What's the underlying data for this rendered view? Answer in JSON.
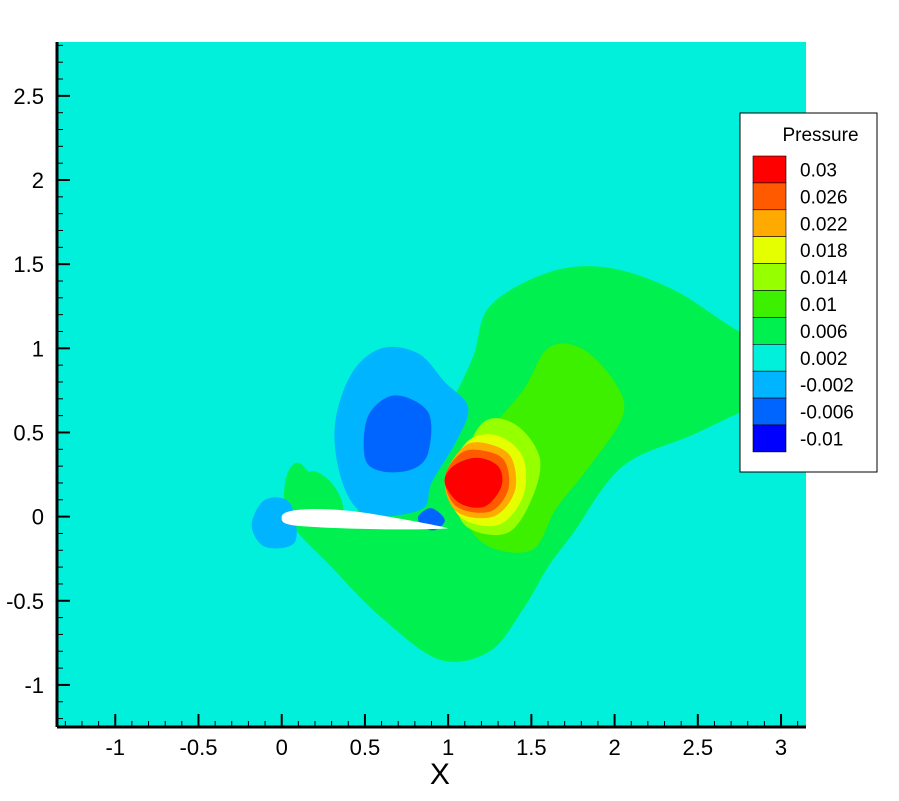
{
  "chart_data": {
    "type": "heatmap",
    "subtype": "filled-contour",
    "title": "",
    "xlabel": "X",
    "ylabel": "",
    "xlim": [
      -1.35,
      3.15
    ],
    "ylim": [
      -1.25,
      2.82
    ],
    "x_ticks": [
      -1,
      -0.5,
      0,
      0.5,
      1,
      1.5,
      2,
      2.5,
      3
    ],
    "x_tick_labels": [
      "-1",
      "-0.5",
      "0",
      "0.5",
      "1",
      "1.5",
      "2",
      "2.5",
      "3"
    ],
    "y_ticks": [
      -1,
      -0.5,
      0,
      0.5,
      1,
      1.5,
      2,
      2.5
    ],
    "y_tick_labels": [
      "-1",
      "-0.5",
      "0",
      "0.5",
      "1",
      "1.5",
      "2",
      "2.5"
    ],
    "grid": false,
    "legend": {
      "title": "Pressure",
      "placement": "right",
      "levels": [
        {
          "label": "0.03",
          "value": 0.03,
          "color": "#ff0000"
        },
        {
          "label": "0.026",
          "value": 0.026,
          "color": "#ff5a00"
        },
        {
          "label": "0.022",
          "value": 0.022,
          "color": "#ffaa00"
        },
        {
          "label": "0.018",
          "value": 0.018,
          "color": "#e6ff00"
        },
        {
          "label": "0.014",
          "value": 0.014,
          "color": "#96ff00"
        },
        {
          "label": "0.01",
          "value": 0.01,
          "color": "#3cf000"
        },
        {
          "label": "0.006",
          "value": 0.006,
          "color": "#00f050"
        },
        {
          "label": "0.002",
          "value": 0.002,
          "color": "#00f0dc"
        },
        {
          "label": "-0.002",
          "value": -0.002,
          "color": "#00b4ff"
        },
        {
          "label": "-0.006",
          "value": -0.006,
          "color": "#0064ff"
        },
        {
          "label": "-0.01",
          "value": -0.01,
          "color": "#0000ff"
        }
      ]
    },
    "background_color": "#00f0dc",
    "airfoil": {
      "leading_edge": [
        0.0,
        0.0
      ],
      "trailing_edge": [
        1.0,
        -0.07
      ],
      "color": "#ffffff"
    },
    "regions": [
      {
        "name": "outer-positive-region",
        "level": "0.006",
        "points": [
          [
            0.05,
            -0.03
          ],
          [
            0.3,
            -0.3
          ],
          [
            0.6,
            -0.6
          ],
          [
            0.95,
            -0.85
          ],
          [
            1.25,
            -0.8
          ],
          [
            1.45,
            -0.55
          ],
          [
            1.6,
            -0.3
          ],
          [
            1.75,
            -0.1
          ],
          [
            2.05,
            0.3
          ],
          [
            2.5,
            0.5
          ],
          [
            3.0,
            0.75
          ],
          [
            3.15,
            0.92
          ],
          [
            2.75,
            1.1
          ],
          [
            2.35,
            1.35
          ],
          [
            1.95,
            1.48
          ],
          [
            1.6,
            1.45
          ],
          [
            1.25,
            1.25
          ],
          [
            1.15,
            0.95
          ],
          [
            1.0,
            0.65
          ],
          [
            0.85,
            0.45
          ],
          [
            0.55,
            0.22
          ],
          [
            0.4,
            -0.05
          ],
          [
            0.25,
            0.15
          ],
          [
            0.1,
            0.32
          ],
          [
            0.02,
            0.2
          ]
        ]
      },
      {
        "name": "left-positive-region",
        "level": "0.006",
        "points": [
          [
            0.05,
            -0.02
          ],
          [
            0.1,
            0.18
          ],
          [
            0.18,
            0.27
          ],
          [
            0.3,
            0.2
          ],
          [
            0.37,
            0.05
          ],
          [
            0.3,
            -0.05
          ]
        ]
      },
      {
        "name": "leading-edge-suction",
        "level": "-0.002",
        "points": [
          [
            -0.1,
            -0.18
          ],
          [
            0.08,
            -0.15
          ],
          [
            0.05,
            0.08
          ],
          [
            -0.1,
            0.1
          ],
          [
            -0.18,
            -0.05
          ]
        ]
      },
      {
        "name": "upper-negative-region",
        "level": "-0.002",
        "points": [
          [
            0.35,
            0.25
          ],
          [
            0.32,
            0.55
          ],
          [
            0.42,
            0.85
          ],
          [
            0.6,
            1.0
          ],
          [
            0.82,
            0.97
          ],
          [
            0.98,
            0.8
          ],
          [
            1.12,
            0.65
          ],
          [
            1.05,
            0.45
          ],
          [
            0.9,
            0.2
          ],
          [
            0.85,
            0.05
          ],
          [
            0.6,
            0.0
          ],
          [
            0.45,
            0.05
          ]
        ]
      },
      {
        "name": "upper-negative-core",
        "level": "-0.006",
        "points": [
          [
            0.5,
            0.35
          ],
          [
            0.52,
            0.6
          ],
          [
            0.68,
            0.72
          ],
          [
            0.88,
            0.62
          ],
          [
            0.88,
            0.38
          ],
          [
            0.78,
            0.28
          ],
          [
            0.6,
            0.27
          ]
        ]
      },
      {
        "name": "trailing-edge-negative",
        "level": "-0.006",
        "points": [
          [
            0.82,
            0.0
          ],
          [
            0.9,
            0.05
          ],
          [
            0.98,
            -0.02
          ],
          [
            0.92,
            -0.08
          ],
          [
            0.85,
            -0.06
          ]
        ]
      },
      {
        "name": "downstream-band-1",
        "level": "0.01",
        "points": [
          [
            1.05,
            0.15
          ],
          [
            1.2,
            -0.15
          ],
          [
            1.5,
            -0.2
          ],
          [
            1.65,
            0.05
          ],
          [
            1.85,
            0.3
          ],
          [
            2.05,
            0.6
          ],
          [
            2.0,
            0.8
          ],
          [
            1.8,
            1.0
          ],
          [
            1.6,
            1.0
          ],
          [
            1.45,
            0.75
          ],
          [
            1.2,
            0.45
          ]
        ]
      },
      {
        "name": "downstream-band-2",
        "level": "0.014",
        "points": [
          [
            1.05,
            0.2
          ],
          [
            1.1,
            -0.05
          ],
          [
            1.35,
            -0.1
          ],
          [
            1.5,
            0.1
          ],
          [
            1.55,
            0.35
          ],
          [
            1.4,
            0.55
          ],
          [
            1.2,
            0.55
          ]
        ]
      },
      {
        "name": "downstream-band-3",
        "level": "0.018",
        "points": [
          [
            1.0,
            0.22
          ],
          [
            1.07,
            0.0
          ],
          [
            1.3,
            -0.05
          ],
          [
            1.45,
            0.12
          ],
          [
            1.45,
            0.35
          ],
          [
            1.3,
            0.48
          ],
          [
            1.12,
            0.45
          ]
        ]
      },
      {
        "name": "downstream-band-4",
        "level": "0.022",
        "points": [
          [
            0.98,
            0.23
          ],
          [
            1.05,
            0.03
          ],
          [
            1.27,
            0.0
          ],
          [
            1.4,
            0.15
          ],
          [
            1.38,
            0.35
          ],
          [
            1.25,
            0.43
          ],
          [
            1.1,
            0.42
          ]
        ]
      },
      {
        "name": "downstream-band-5",
        "level": "0.026",
        "points": [
          [
            0.98,
            0.23
          ],
          [
            1.05,
            0.06
          ],
          [
            1.25,
            0.03
          ],
          [
            1.36,
            0.16
          ],
          [
            1.34,
            0.33
          ],
          [
            1.22,
            0.39
          ],
          [
            1.08,
            0.38
          ]
        ]
      },
      {
        "name": "pressure-peak-core",
        "level": "0.03",
        "points": [
          [
            0.98,
            0.2
          ],
          [
            1.07,
            0.08
          ],
          [
            1.22,
            0.06
          ],
          [
            1.32,
            0.18
          ],
          [
            1.3,
            0.3
          ],
          [
            1.17,
            0.35
          ],
          [
            1.03,
            0.3
          ]
        ]
      }
    ]
  }
}
